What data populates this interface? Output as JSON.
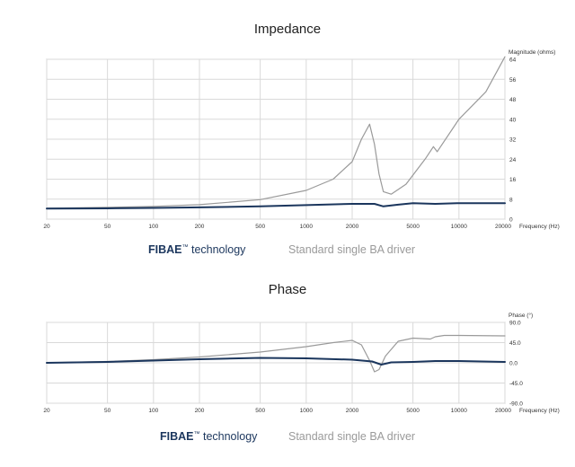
{
  "chart_data": [
    {
      "type": "line",
      "title": "Impedance",
      "xlabel": "Frequency (Hz)",
      "ylabel": "Magnitude (ohms)",
      "xscale": "log",
      "xlim": [
        20,
        20000
      ],
      "ylim": [
        0,
        64
      ],
      "xticks": [
        20,
        50,
        100,
        200,
        500,
        1000,
        2000,
        5000,
        10000,
        20000
      ],
      "yticks": [
        0,
        8,
        16,
        24,
        32,
        40,
        48,
        56,
        64
      ],
      "grid": true,
      "series": [
        {
          "name": "Standard single BA driver",
          "color": "#9a9a9a",
          "x": [
            20,
            50,
            100,
            200,
            500,
            1000,
            1500,
            2000,
            2300,
            2600,
            2800,
            3000,
            3200,
            3600,
            4500,
            6000,
            6800,
            7200,
            10000,
            15000,
            20000
          ],
          "y": [
            4.4,
            4.7,
            5.1,
            5.8,
            7.8,
            11.5,
            16,
            23,
            32,
            38,
            30,
            18,
            11,
            10,
            14,
            24,
            29,
            27,
            40,
            51,
            65
          ]
        },
        {
          "name": "FIBAE technology",
          "color": "#1b365d",
          "x": [
            20,
            50,
            100,
            200,
            500,
            1000,
            2000,
            2800,
            3200,
            4000,
            5000,
            7000,
            10000,
            20000
          ],
          "y": [
            4.2,
            4.3,
            4.5,
            4.7,
            5.1,
            5.6,
            6.1,
            6.1,
            5.1,
            5.8,
            6.4,
            6.1,
            6.4,
            6.4
          ]
        }
      ]
    },
    {
      "type": "line",
      "title": "Phase",
      "xlabel": "Frequency (Hz)",
      "ylabel": "Phase (°)",
      "xscale": "log",
      "xlim": [
        20,
        20000
      ],
      "ylim": [
        -90,
        90
      ],
      "xticks": [
        20,
        50,
        100,
        200,
        500,
        1000,
        2000,
        5000,
        10000,
        20000
      ],
      "yticks": [
        -90,
        -45,
        0,
        45,
        90
      ],
      "ytick_labels": [
        "-90.0",
        "-45.0",
        "0.0",
        "45.0",
        "90.0"
      ],
      "grid": true,
      "series": [
        {
          "name": "Standard single BA driver",
          "color": "#9a9a9a",
          "x": [
            20,
            50,
            100,
            200,
            500,
            1000,
            1500,
            2000,
            2300,
            2600,
            2800,
            3000,
            3300,
            4000,
            5000,
            6500,
            7000,
            8000,
            10000,
            20000
          ],
          "y": [
            0,
            3,
            7,
            13,
            24,
            36,
            45,
            50,
            40,
            5,
            -20,
            -15,
            15,
            48,
            55,
            53,
            58,
            61,
            61,
            60
          ]
        },
        {
          "name": "FIBAE technology",
          "color": "#1b365d",
          "x": [
            20,
            50,
            100,
            200,
            500,
            1000,
            2000,
            2700,
            3100,
            3600,
            5000,
            7000,
            10000,
            20000
          ],
          "y": [
            0,
            2,
            5,
            8,
            11,
            10,
            7,
            3,
            -4,
            1,
            2,
            4,
            4,
            2
          ]
        }
      ]
    }
  ],
  "legend": {
    "fibae_bold": "FIBAE",
    "fibae_tm": "™",
    "fibae_rest": " technology",
    "standard": "Standard single BA driver"
  }
}
